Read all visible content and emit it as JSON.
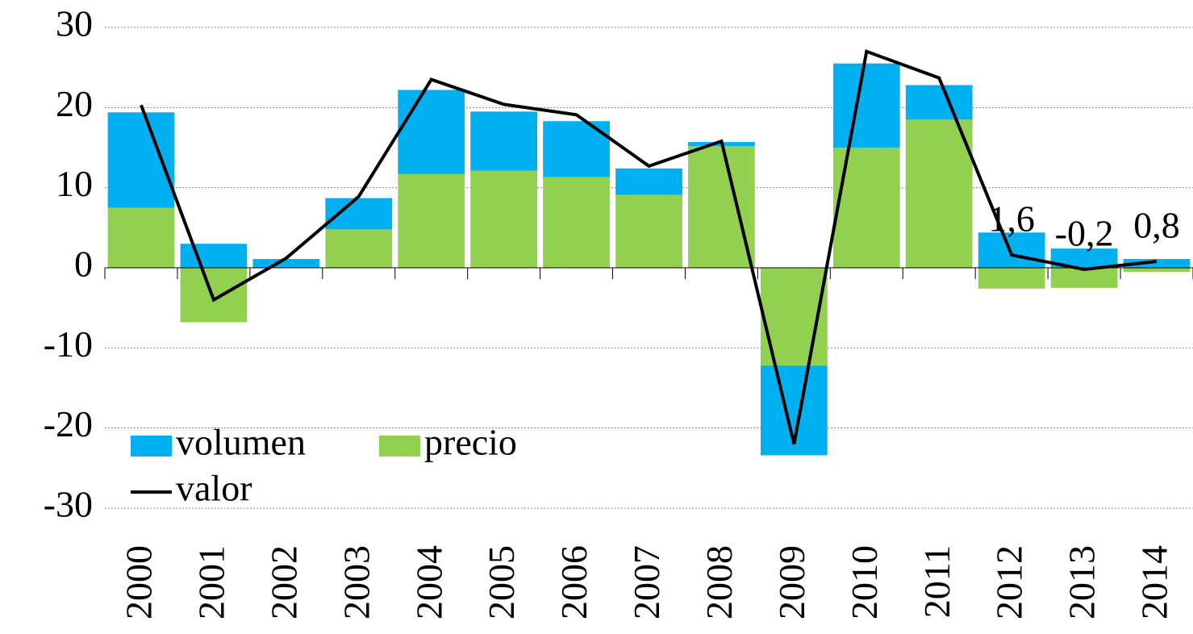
{
  "chart_data": {
    "type": "bar",
    "stacked": true,
    "categories": [
      "2000",
      "2001",
      "2002",
      "2003",
      "2004",
      "2005",
      "2006",
      "2007",
      "2008",
      "2009",
      "2010",
      "2011",
      "2012",
      "2013",
      "2014"
    ],
    "series": [
      {
        "name": "volumen",
        "color": "#00b0f0",
        "values": [
          11.9,
          3.0,
          1.1,
          3.9,
          10.5,
          7.4,
          7.0,
          3.3,
          0.5,
          -11.2,
          10.5,
          4.3,
          4.4,
          2.4,
          1.1
        ]
      },
      {
        "name": "precio",
        "color": "#92d050",
        "values": [
          7.5,
          -6.8,
          0,
          4.8,
          11.7,
          12.1,
          11.3,
          9.1,
          15.2,
          -12.2,
          15.0,
          18.5,
          -2.6,
          -2.5,
          -0.5
        ]
      },
      {
        "name": "valor",
        "color": "#000000",
        "type": "line",
        "values": [
          20.3,
          -4.0,
          1.2,
          8.9,
          23.5,
          20.4,
          19.1,
          12.7,
          15.8,
          -22.0,
          27.0,
          23.7,
          1.6,
          -0.2,
          0.8
        ],
        "value_labels": [
          null,
          null,
          null,
          null,
          null,
          null,
          null,
          null,
          null,
          null,
          null,
          null,
          "1,6",
          "-0,2",
          "0,8"
        ]
      }
    ],
    "ylim": [
      -30,
      30
    ],
    "yticks": [
      30,
      20,
      10,
      0,
      -10,
      -20,
      -30
    ],
    "grid": true
  }
}
